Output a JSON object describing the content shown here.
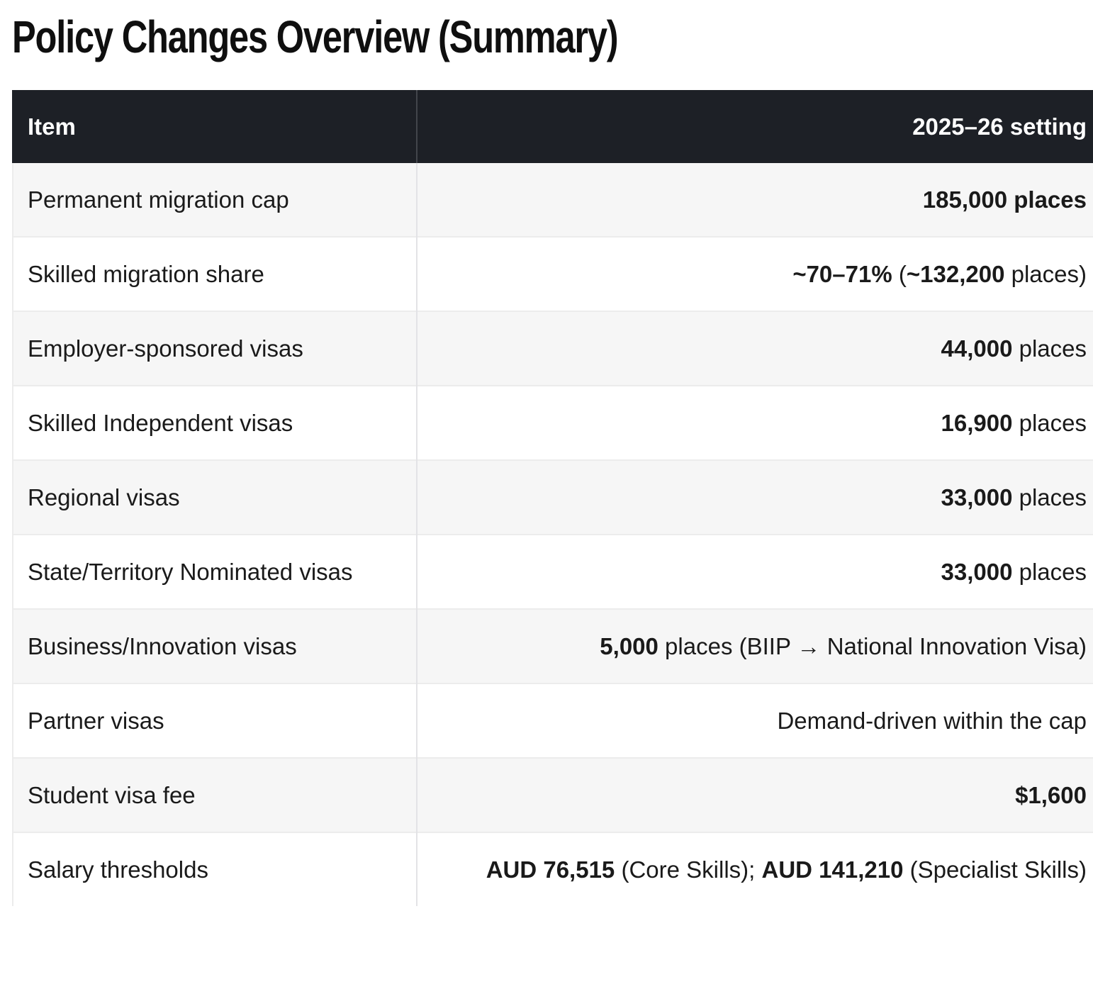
{
  "page_title": "Policy Changes Overview (Summary)",
  "table": {
    "columns": [
      "Item",
      "2025–26 setting"
    ],
    "rows": [
      {
        "item": "Permanent migration cap",
        "value": [
          {
            "text": "185,000 places",
            "bold": true
          }
        ]
      },
      {
        "item": "Skilled migration share",
        "value": [
          {
            "text": "~70–71%",
            "bold": true
          },
          {
            "text": " (",
            "bold": false
          },
          {
            "text": "~132,200",
            "bold": true
          },
          {
            "text": " places)",
            "bold": false
          }
        ]
      },
      {
        "item": "Employer-sponsored visas",
        "value": [
          {
            "text": "44,000",
            "bold": true
          },
          {
            "text": " places",
            "bold": false
          }
        ]
      },
      {
        "item": "Skilled Independent visas",
        "value": [
          {
            "text": "16,900",
            "bold": true
          },
          {
            "text": " places",
            "bold": false
          }
        ]
      },
      {
        "item": "Regional visas",
        "value": [
          {
            "text": "33,000",
            "bold": true
          },
          {
            "text": " places",
            "bold": false
          }
        ]
      },
      {
        "item": "State/Territory Nominated visas",
        "value": [
          {
            "text": "33,000",
            "bold": true
          },
          {
            "text": " places",
            "bold": false
          }
        ]
      },
      {
        "item": "Business/Innovation visas",
        "value": [
          {
            "text": "5,000",
            "bold": true
          },
          {
            "text": " places (BIIP → National Innovation Visa)",
            "bold": false
          }
        ]
      },
      {
        "item": "Partner visas",
        "value": [
          {
            "text": "Demand-driven within the cap",
            "bold": false
          }
        ]
      },
      {
        "item": "Student visa fee",
        "value": [
          {
            "text": "$1,600",
            "bold": true
          }
        ]
      },
      {
        "item": "Salary thresholds",
        "value": [
          {
            "text": "AUD 76,515",
            "bold": true
          },
          {
            "text": " (Core Skills); ",
            "bold": false
          },
          {
            "text": "AUD 141,210",
            "bold": true
          },
          {
            "text": " (Specialist Skills)",
            "bold": false
          }
        ]
      }
    ]
  }
}
